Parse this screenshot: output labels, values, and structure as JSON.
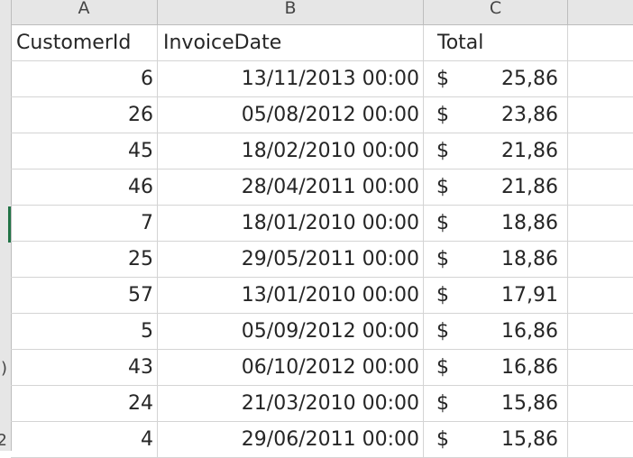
{
  "columns": {
    "a": "A",
    "b": "B",
    "c": "C"
  },
  "header_row": {
    "customer_id": "CustomerId",
    "invoice_date": "InvoiceDate",
    "total": "Total"
  },
  "rows": [
    {
      "customer_id": "6",
      "invoice_date": "13/11/2013 00:00",
      "currency": "$",
      "total": "25,86"
    },
    {
      "customer_id": "26",
      "invoice_date": "05/08/2012 00:00",
      "currency": "$",
      "total": "23,86"
    },
    {
      "customer_id": "45",
      "invoice_date": "18/02/2010 00:00",
      "currency": "$",
      "total": "21,86"
    },
    {
      "customer_id": "46",
      "invoice_date": "28/04/2011 00:00",
      "currency": "$",
      "total": "21,86"
    },
    {
      "customer_id": "7",
      "invoice_date": "18/01/2010 00:00",
      "currency": "$",
      "total": "18,86"
    },
    {
      "customer_id": "25",
      "invoice_date": "29/05/2011 00:00",
      "currency": "$",
      "total": "18,86"
    },
    {
      "customer_id": "57",
      "invoice_date": "13/01/2010 00:00",
      "currency": "$",
      "total": "17,91"
    },
    {
      "customer_id": "5",
      "invoice_date": "05/09/2012 00:00",
      "currency": "$",
      "total": "16,86"
    },
    {
      "customer_id": "43",
      "invoice_date": "06/10/2012 00:00",
      "currency": "$",
      "total": "16,86"
    },
    {
      "customer_id": "24",
      "invoice_date": "21/03/2010 00:00",
      "currency": "$",
      "total": "15,86"
    },
    {
      "customer_id": "4",
      "invoice_date": "29/06/2011 00:00",
      "currency": "$",
      "total": "15,86"
    }
  ],
  "row_number_fragments": {
    "row_10": ")",
    "row_12": "2"
  },
  "colors": {
    "selection_accent": "#217346",
    "header_bg": "#e6e6e6",
    "gridline": "#d4d4d4"
  }
}
